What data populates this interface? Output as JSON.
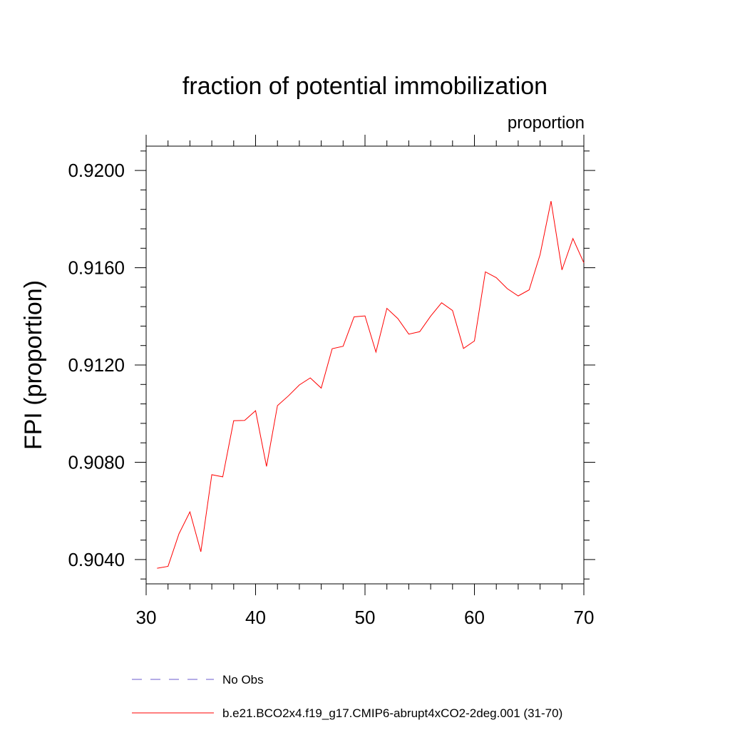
{
  "chart_data": {
    "type": "line",
    "title": "fraction of potential immobilization",
    "units_label": "proportion",
    "ylabel": "FPI  (proportion)",
    "xlabel": "",
    "xlim": [
      30,
      70
    ],
    "ylim": [
      0.903,
      0.921
    ],
    "x_ticks": [
      30,
      40,
      50,
      60,
      70
    ],
    "y_ticks": [
      0.904,
      0.908,
      0.912,
      0.916,
      0.92
    ],
    "y_tick_labels": [
      "0.9040",
      "0.9080",
      "0.9120",
      "0.9160",
      "0.9200"
    ],
    "grid": false,
    "legend_position": "bottom",
    "series": [
      {
        "name": "No Obs",
        "color": "#6a5acd",
        "dash": "dashed",
        "x": [],
        "y": []
      },
      {
        "name": "b.e21.BCO2x4.f19_g17.CMIP6-abrupt4xCO2-2deg.001 (31-70)",
        "color": "#ff0000",
        "dash": "solid",
        "x": [
          31,
          32,
          33,
          34,
          35,
          36,
          37,
          38,
          39,
          40,
          41,
          42,
          43,
          44,
          45,
          46,
          47,
          48,
          49,
          50,
          51,
          52,
          53,
          54,
          55,
          56,
          57,
          58,
          59,
          60,
          61,
          62,
          63,
          64,
          65,
          66,
          67,
          68,
          69,
          70
        ],
        "y": [
          0.90364,
          0.90372,
          0.90506,
          0.90596,
          0.90432,
          0.90749,
          0.9074,
          0.90971,
          0.90972,
          0.91012,
          0.90783,
          0.91033,
          0.91073,
          0.91118,
          0.91147,
          0.91105,
          0.91267,
          0.91277,
          0.91398,
          0.91402,
          0.91253,
          0.91433,
          0.91391,
          0.91327,
          0.91337,
          0.91401,
          0.91456,
          0.91424,
          0.91268,
          0.91299,
          0.91583,
          0.91559,
          0.91514,
          0.91484,
          0.91509,
          0.91654,
          0.91874,
          0.91591,
          0.9172,
          0.9162
        ]
      }
    ]
  }
}
